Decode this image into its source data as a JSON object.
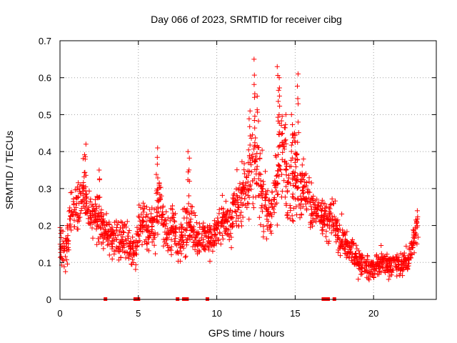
{
  "chart_data": {
    "type": "scatter",
    "title": "Day 066 of 2023, SRMTID for receiver cibg",
    "xlabel": "GPS time / hours",
    "ylabel": "SRMTID / TECUs",
    "xlim": [
      0,
      24
    ],
    "ylim": [
      0,
      0.7
    ],
    "xticks": [
      0,
      5,
      10,
      15,
      20
    ],
    "yticks": [
      0,
      0.1,
      0.2,
      0.3,
      0.4,
      0.5,
      0.6,
      0.7
    ],
    "xtick_labels": [
      "0",
      "5",
      "10",
      "15",
      "20"
    ],
    "ytick_labels": [
      "0",
      "0.1",
      "0.2",
      "0.3",
      "0.4",
      "0.5",
      "0.6",
      "0.7"
    ],
    "grid": true,
    "marker": "+",
    "color": "#ff0000",
    "baseline_markers_x": [
      2.9,
      4.8,
      4.9,
      5.0,
      7.5,
      7.9,
      8.1,
      9.4,
      16.8,
      17.0,
      17.1,
      17.5
    ],
    "envelope": {
      "x": [
        0,
        0.3,
        0.6,
        0.9,
        1.2,
        1.5,
        1.8,
        2.1,
        2.4,
        2.7,
        3.0,
        3.3,
        3.6,
        3.9,
        4.2,
        4.5,
        4.8,
        5.1,
        5.4,
        5.7,
        6.0,
        6.3,
        6.6,
        6.9,
        7.2,
        7.5,
        7.8,
        8.1,
        8.4,
        8.7,
        9.0,
        9.3,
        9.6,
        9.9,
        10.2,
        10.5,
        10.8,
        11.1,
        11.4,
        11.7,
        12.0,
        12.3,
        12.6,
        12.9,
        13.2,
        13.5,
        13.8,
        14.1,
        14.4,
        14.7,
        15.0,
        15.3,
        15.6,
        15.9,
        16.2,
        16.5,
        16.8,
        17.1,
        17.4,
        17.7,
        18.0,
        18.3,
        18.6,
        18.9,
        19.2,
        19.5,
        19.8,
        20.1,
        20.4,
        20.7,
        21.0,
        21.3,
        21.6,
        21.9,
        22.2,
        22.5,
        22.8
      ],
      "mean": [
        0.15,
        0.13,
        0.2,
        0.24,
        0.25,
        0.3,
        0.24,
        0.22,
        0.23,
        0.2,
        0.18,
        0.16,
        0.18,
        0.15,
        0.17,
        0.14,
        0.13,
        0.2,
        0.22,
        0.19,
        0.18,
        0.28,
        0.2,
        0.17,
        0.2,
        0.15,
        0.18,
        0.2,
        0.2,
        0.16,
        0.17,
        0.18,
        0.16,
        0.18,
        0.2,
        0.22,
        0.2,
        0.24,
        0.27,
        0.3,
        0.33,
        0.38,
        0.34,
        0.28,
        0.26,
        0.22,
        0.32,
        0.4,
        0.35,
        0.3,
        0.37,
        0.28,
        0.3,
        0.27,
        0.24,
        0.23,
        0.22,
        0.2,
        0.22,
        0.18,
        0.16,
        0.14,
        0.13,
        0.11,
        0.1,
        0.09,
        0.08,
        0.09,
        0.1,
        0.1,
        0.09,
        0.1,
        0.09,
        0.1,
        0.1,
        0.15,
        0.2
      ],
      "spread": [
        0.05,
        0.05,
        0.06,
        0.07,
        0.08,
        0.09,
        0.08,
        0.06,
        0.07,
        0.06,
        0.06,
        0.05,
        0.05,
        0.05,
        0.05,
        0.05,
        0.05,
        0.06,
        0.07,
        0.06,
        0.06,
        0.1,
        0.06,
        0.06,
        0.07,
        0.06,
        0.06,
        0.07,
        0.07,
        0.05,
        0.06,
        0.06,
        0.05,
        0.06,
        0.06,
        0.06,
        0.06,
        0.07,
        0.08,
        0.1,
        0.12,
        0.16,
        0.12,
        0.09,
        0.09,
        0.08,
        0.12,
        0.16,
        0.12,
        0.1,
        0.14,
        0.08,
        0.08,
        0.07,
        0.06,
        0.06,
        0.06,
        0.06,
        0.06,
        0.05,
        0.05,
        0.04,
        0.04,
        0.035,
        0.035,
        0.03,
        0.03,
        0.03,
        0.035,
        0.035,
        0.03,
        0.035,
        0.03,
        0.035,
        0.035,
        0.04,
        0.04
      ],
      "points_per_segment": 24
    },
    "peaks": [
      {
        "x": 1.6,
        "y": 0.42
      },
      {
        "x": 2.5,
        "y": 0.35
      },
      {
        "x": 6.2,
        "y": 0.41
      },
      {
        "x": 8.2,
        "y": 0.4
      },
      {
        "x": 12.1,
        "y": 0.51
      },
      {
        "x": 12.4,
        "y": 0.65
      },
      {
        "x": 12.6,
        "y": 0.55
      },
      {
        "x": 13.9,
        "y": 0.63
      },
      {
        "x": 14.0,
        "y": 0.6
      },
      {
        "x": 14.4,
        "y": 0.5
      },
      {
        "x": 14.8,
        "y": 0.5
      },
      {
        "x": 15.2,
        "y": 0.61
      },
      {
        "x": 15.0,
        "y": 0.45
      },
      {
        "x": 15.5,
        "y": 0.38
      },
      {
        "x": 22.8,
        "y": 0.24
      }
    ]
  }
}
